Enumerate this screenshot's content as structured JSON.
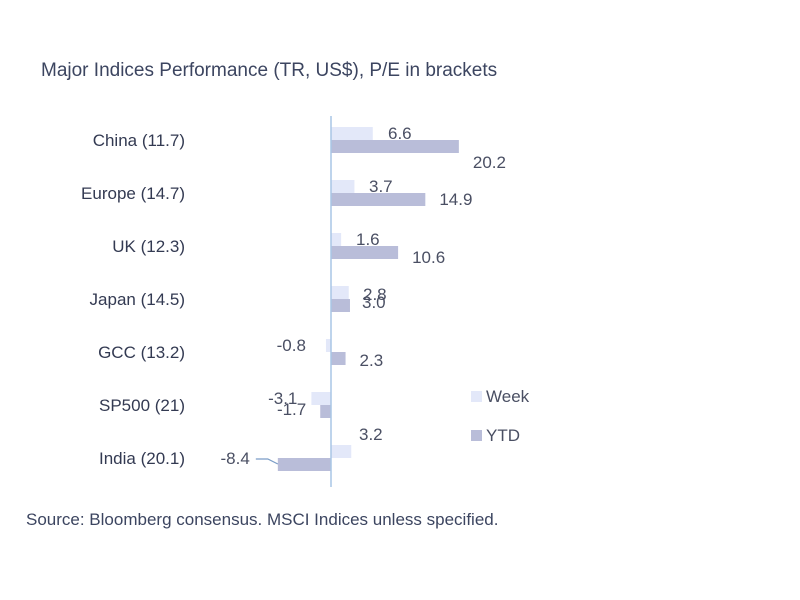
{
  "title": "Major Indices Performance (TR, US$), P/E in brackets",
  "source": "Source: Bloomberg consensus. MSCI Indices unless specified.",
  "colors": {
    "week": "#e3e8f9",
    "ytd": "#b9bdd9",
    "axis": "#a9c6e6"
  },
  "chart_data": {
    "type": "bar",
    "orientation": "horizontal",
    "categories": [
      "China (11.7)",
      "Europe (14.7)",
      "UK (12.3)",
      "Japan (14.5)",
      "GCC (13.2)",
      "SP500 (21)",
      "India (20.1)"
    ],
    "series": [
      {
        "name": "Week",
        "values": [
          6.6,
          3.7,
          1.6,
          2.8,
          -0.8,
          -3.1,
          3.2
        ]
      },
      {
        "name": "YTD",
        "values": [
          20.2,
          14.9,
          10.6,
          3.0,
          2.3,
          -1.7,
          -8.4
        ]
      }
    ],
    "value_labels": {
      "Week": [
        "6.6",
        "3.7",
        "1.6",
        "2.8",
        "-0.8",
        "-3.1",
        "3.2"
      ],
      "YTD": [
        "20.2",
        "14.9",
        "10.6",
        "3.0",
        "2.3",
        "-1.7",
        "-8.4"
      ]
    },
    "legend_position": "right",
    "grid": false
  }
}
